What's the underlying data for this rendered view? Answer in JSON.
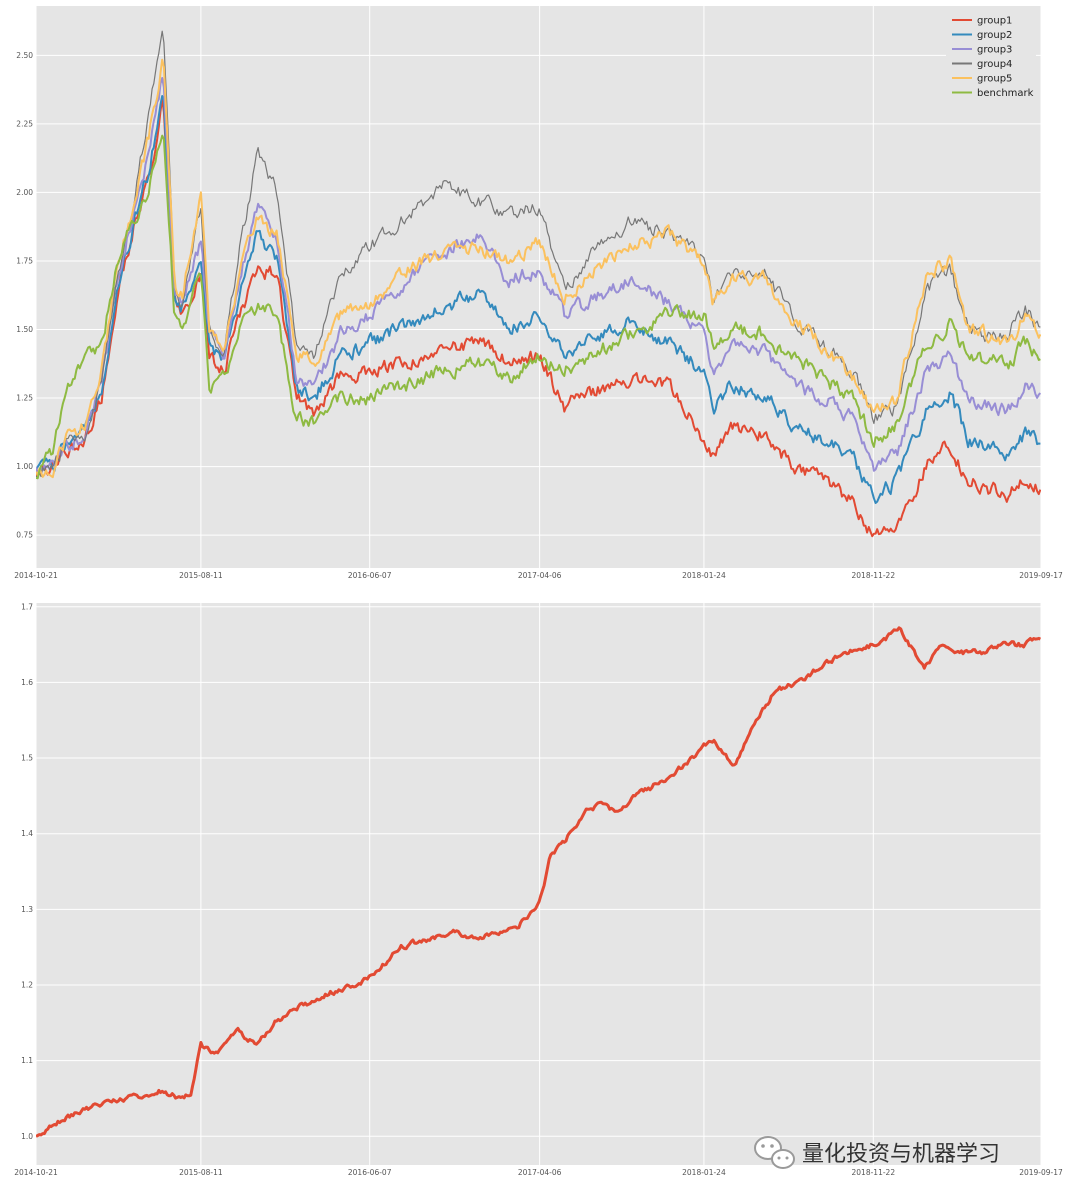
{
  "watermark": {
    "text": "量化投资与机器学习",
    "icon": "wechat-icon"
  },
  "colors": {
    "background": "#e5e5e5",
    "grid": "#ffffff",
    "group1": "#e24a33",
    "group2": "#348abd",
    "group3": "#988ed5",
    "group4": "#777777",
    "group5": "#fbc15e",
    "benchmark": "#8eba42"
  },
  "chart_data": [
    {
      "type": "line",
      "title": "",
      "xlabel": "",
      "ylabel": "",
      "grid": true,
      "legend": "top-right",
      "x_ticks": [
        "2014-10-21",
        "2015-08-11",
        "2016-06-07",
        "2017-04-06",
        "2018-01-24",
        "2018-11-22",
        "2019-09-17"
      ],
      "y_ticks": [
        "0.75",
        "1.00",
        "1.25",
        "1.50",
        "1.75",
        "2.00",
        "2.25",
        "2.50"
      ],
      "ylim": [
        0.63,
        2.68
      ],
      "series": [
        {
          "name": "group1",
          "x": [
            "2014-10-21",
            "2014-11-20",
            "2014-12-15",
            "2015-01-15",
            "2015-02-15",
            "2015-03-15",
            "2015-04-15",
            "2015-05-10",
            "2015-06-05",
            "2015-06-25",
            "2015-07-08",
            "2015-08-11",
            "2015-08-26",
            "2015-09-20",
            "2015-10-20",
            "2015-11-20",
            "2015-12-25",
            "2016-01-28",
            "2016-02-29",
            "2016-04-15",
            "2016-06-07",
            "2016-08-15",
            "2016-10-15",
            "2016-12-20",
            "2017-02-10",
            "2017-04-06",
            "2017-05-20",
            "2017-07-15",
            "2017-09-15",
            "2017-11-20",
            "2018-01-24",
            "2018-02-09",
            "2018-03-15",
            "2018-05-15",
            "2018-06-30",
            "2018-08-20",
            "2018-10-15",
            "2018-11-22",
            "2019-01-03",
            "2019-02-25",
            "2019-04-08",
            "2019-05-10",
            "2019-06-15",
            "2019-07-20",
            "2019-08-20",
            "2019-09-17"
          ],
          "values": [
            0.98,
            1.0,
            1.06,
            1.1,
            1.25,
            1.62,
            1.88,
            2.05,
            2.33,
            1.6,
            1.55,
            1.7,
            1.4,
            1.35,
            1.55,
            1.72,
            1.7,
            1.25,
            1.2,
            1.33,
            1.35,
            1.38,
            1.41,
            1.46,
            1.38,
            1.4,
            1.22,
            1.28,
            1.32,
            1.3,
            1.1,
            1.05,
            1.15,
            1.12,
            1.0,
            0.95,
            0.88,
            0.74,
            0.78,
            1.0,
            1.08,
            0.95,
            0.92,
            0.9,
            0.95,
            0.91
          ]
        },
        {
          "name": "group2",
          "x": [
            "2014-10-21",
            "2014-11-20",
            "2014-12-15",
            "2015-01-15",
            "2015-02-15",
            "2015-03-15",
            "2015-04-15",
            "2015-05-10",
            "2015-06-05",
            "2015-06-25",
            "2015-07-08",
            "2015-08-11",
            "2015-08-26",
            "2015-09-20",
            "2015-10-20",
            "2015-11-20",
            "2015-12-25",
            "2016-01-28",
            "2016-02-29",
            "2016-04-15",
            "2016-06-07",
            "2016-08-15",
            "2016-10-15",
            "2016-12-20",
            "2017-02-10",
            "2017-04-06",
            "2017-05-20",
            "2017-07-15",
            "2017-09-15",
            "2017-11-20",
            "2018-01-24",
            "2018-02-09",
            "2018-03-15",
            "2018-05-15",
            "2018-06-30",
            "2018-08-20",
            "2018-10-15",
            "2018-11-22",
            "2019-01-03",
            "2019-02-25",
            "2019-04-08",
            "2019-05-10",
            "2019-06-15",
            "2019-07-20",
            "2019-08-20",
            "2019-09-17"
          ],
          "values": [
            0.98,
            1.0,
            1.08,
            1.12,
            1.28,
            1.65,
            1.9,
            2.08,
            2.35,
            1.62,
            1.58,
            1.78,
            1.45,
            1.38,
            1.62,
            1.85,
            1.75,
            1.28,
            1.25,
            1.4,
            1.45,
            1.52,
            1.58,
            1.63,
            1.5,
            1.57,
            1.4,
            1.48,
            1.53,
            1.45,
            1.35,
            1.2,
            1.3,
            1.25,
            1.15,
            1.1,
            1.05,
            0.88,
            0.95,
            1.2,
            1.27,
            1.1,
            1.08,
            1.05,
            1.12,
            1.09
          ]
        },
        {
          "name": "group3",
          "x": [
            "2014-10-21",
            "2014-11-20",
            "2014-12-15",
            "2015-01-15",
            "2015-02-15",
            "2015-03-15",
            "2015-04-15",
            "2015-05-10",
            "2015-06-05",
            "2015-06-25",
            "2015-07-08",
            "2015-08-11",
            "2015-08-26",
            "2015-09-20",
            "2015-10-20",
            "2015-11-20",
            "2015-12-25",
            "2016-01-28",
            "2016-02-29",
            "2016-04-15",
            "2016-06-07",
            "2016-08-15",
            "2016-10-15",
            "2016-12-20",
            "2017-02-10",
            "2017-04-06",
            "2017-05-20",
            "2017-07-15",
            "2017-09-15",
            "2017-11-20",
            "2018-01-24",
            "2018-02-09",
            "2018-03-15",
            "2018-05-15",
            "2018-06-30",
            "2018-08-20",
            "2018-10-15",
            "2018-11-22",
            "2019-01-03",
            "2019-02-25",
            "2019-04-08",
            "2019-05-10",
            "2019-06-15",
            "2019-07-20",
            "2019-08-20",
            "2019-09-17"
          ],
          "values": [
            0.98,
            1.0,
            1.08,
            1.12,
            1.3,
            1.68,
            1.95,
            2.15,
            2.45,
            1.65,
            1.6,
            1.82,
            1.48,
            1.4,
            1.68,
            1.95,
            1.85,
            1.32,
            1.28,
            1.48,
            1.55,
            1.68,
            1.78,
            1.85,
            1.68,
            1.72,
            1.55,
            1.62,
            1.68,
            1.6,
            1.5,
            1.35,
            1.45,
            1.42,
            1.3,
            1.25,
            1.18,
            1.0,
            1.05,
            1.35,
            1.4,
            1.25,
            1.22,
            1.2,
            1.3,
            1.25
          ]
        },
        {
          "name": "group4",
          "x": [
            "2014-10-21",
            "2014-11-20",
            "2014-12-15",
            "2015-01-15",
            "2015-02-15",
            "2015-03-15",
            "2015-04-15",
            "2015-05-10",
            "2015-06-05",
            "2015-06-25",
            "2015-07-08",
            "2015-08-11",
            "2015-08-26",
            "2015-09-20",
            "2015-10-20",
            "2015-11-20",
            "2015-12-25",
            "2016-01-28",
            "2016-02-29",
            "2016-04-15",
            "2016-06-07",
            "2016-08-15",
            "2016-10-15",
            "2016-12-20",
            "2017-02-10",
            "2017-04-06",
            "2017-05-20",
            "2017-07-15",
            "2017-09-15",
            "2017-11-20",
            "2018-01-24",
            "2018-02-09",
            "2018-03-15",
            "2018-05-15",
            "2018-06-30",
            "2018-08-20",
            "2018-10-15",
            "2018-11-22",
            "2019-01-03",
            "2019-02-25",
            "2019-04-08",
            "2019-05-10",
            "2019-06-15",
            "2019-07-20",
            "2019-08-20",
            "2019-09-17"
          ],
          "values": [
            0.98,
            1.0,
            1.08,
            1.12,
            1.3,
            1.7,
            2.0,
            2.3,
            2.62,
            1.65,
            1.6,
            1.95,
            1.5,
            1.42,
            1.8,
            2.14,
            2.0,
            1.45,
            1.4,
            1.7,
            1.8,
            1.92,
            2.02,
            1.97,
            1.92,
            1.95,
            1.65,
            1.8,
            1.9,
            1.85,
            1.78,
            1.6,
            1.72,
            1.7,
            1.55,
            1.45,
            1.35,
            1.18,
            1.22,
            1.65,
            1.72,
            1.5,
            1.48,
            1.48,
            1.58,
            1.48
          ]
        },
        {
          "name": "group5",
          "x": [
            "2014-10-21",
            "2014-11-20",
            "2014-12-15",
            "2015-01-15",
            "2015-02-15",
            "2015-03-15",
            "2015-04-15",
            "2015-05-10",
            "2015-06-05",
            "2015-06-25",
            "2015-07-08",
            "2015-08-11",
            "2015-08-26",
            "2015-09-20",
            "2015-10-20",
            "2015-11-20",
            "2015-12-25",
            "2016-01-28",
            "2016-02-29",
            "2016-04-15",
            "2016-06-07",
            "2016-08-15",
            "2016-10-15",
            "2016-12-20",
            "2017-02-10",
            "2017-04-06",
            "2017-05-20",
            "2017-07-15",
            "2017-09-15",
            "2017-11-20",
            "2018-01-24",
            "2018-02-09",
            "2018-03-15",
            "2018-05-15",
            "2018-06-30",
            "2018-08-20",
            "2018-10-15",
            "2018-11-22",
            "2019-01-03",
            "2019-02-25",
            "2019-04-08",
            "2019-05-10",
            "2019-06-15",
            "2019-07-20",
            "2019-08-20",
            "2019-09-17"
          ],
          "values": [
            0.98,
            1.0,
            1.1,
            1.15,
            1.35,
            1.72,
            1.98,
            2.2,
            2.5,
            1.68,
            1.62,
            2.0,
            1.5,
            1.42,
            1.72,
            1.9,
            1.85,
            1.42,
            1.38,
            1.55,
            1.6,
            1.72,
            1.78,
            1.8,
            1.75,
            1.82,
            1.62,
            1.72,
            1.8,
            1.85,
            1.75,
            1.6,
            1.7,
            1.68,
            1.55,
            1.45,
            1.32,
            1.2,
            1.25,
            1.7,
            1.75,
            1.5,
            1.48,
            1.45,
            1.55,
            1.48
          ]
        },
        {
          "name": "benchmark",
          "x": [
            "2014-10-21",
            "2014-11-20",
            "2014-12-15",
            "2015-01-15",
            "2015-02-15",
            "2015-03-15",
            "2015-04-15",
            "2015-05-10",
            "2015-06-05",
            "2015-06-25",
            "2015-07-08",
            "2015-08-11",
            "2015-08-26",
            "2015-09-20",
            "2015-10-20",
            "2015-11-20",
            "2015-12-25",
            "2016-01-28",
            "2016-02-29",
            "2016-04-15",
            "2016-06-07",
            "2016-08-15",
            "2016-10-15",
            "2016-12-20",
            "2017-02-10",
            "2017-04-06",
            "2017-05-20",
            "2017-07-15",
            "2017-09-15",
            "2017-11-20",
            "2018-01-24",
            "2018-02-09",
            "2018-03-15",
            "2018-05-15",
            "2018-06-30",
            "2018-08-20",
            "2018-10-15",
            "2018-11-22",
            "2019-01-03",
            "2019-02-25",
            "2019-04-08",
            "2019-05-10",
            "2019-06-15",
            "2019-07-20",
            "2019-08-20",
            "2019-09-17"
          ],
          "values": [
            0.98,
            1.05,
            1.3,
            1.38,
            1.45,
            1.75,
            1.9,
            2.0,
            2.25,
            1.55,
            1.5,
            1.7,
            1.3,
            1.32,
            1.5,
            1.58,
            1.55,
            1.18,
            1.15,
            1.25,
            1.25,
            1.3,
            1.35,
            1.38,
            1.32,
            1.4,
            1.35,
            1.42,
            1.48,
            1.55,
            1.55,
            1.45,
            1.5,
            1.48,
            1.4,
            1.33,
            1.25,
            1.1,
            1.15,
            1.45,
            1.52,
            1.4,
            1.38,
            1.38,
            1.45,
            1.4
          ]
        }
      ]
    },
    {
      "type": "line",
      "title": "",
      "xlabel": "",
      "ylabel": "",
      "grid": true,
      "legend": "none",
      "x_ticks": [
        "2014-10-21",
        "2015-08-11",
        "2016-06-07",
        "2017-04-06",
        "2018-01-24",
        "2018-11-22",
        "2019-09-17"
      ],
      "y_ticks": [
        "1.0",
        "1.1",
        "1.2",
        "1.3",
        "1.4",
        "1.5",
        "1.6",
        "1.7"
      ],
      "ylim": [
        0.962,
        1.705
      ],
      "series": [
        {
          "name": "",
          "x": [
            "2014-10-21",
            "2014-12-01",
            "2015-02-01",
            "2015-04-01",
            "2015-06-01",
            "2015-07-10",
            "2015-07-25",
            "2015-08-11",
            "2015-09-10",
            "2015-10-15",
            "2015-11-20",
            "2015-12-20",
            "2016-02-01",
            "2016-04-01",
            "2016-06-07",
            "2016-08-01",
            "2016-09-15",
            "2016-11-01",
            "2016-12-15",
            "2017-01-20",
            "2017-03-01",
            "2017-04-06",
            "2017-04-25",
            "2017-05-20",
            "2017-06-30",
            "2017-07-25",
            "2017-08-20",
            "2017-09-25",
            "2017-10-20",
            "2017-11-30",
            "2018-01-05",
            "2018-01-24",
            "2018-02-15",
            "2018-03-20",
            "2018-04-20",
            "2018-06-01",
            "2018-07-10",
            "2018-08-20",
            "2018-10-01",
            "2018-11-22",
            "2019-01-10",
            "2019-02-20",
            "2019-03-25",
            "2019-04-20",
            "2019-06-01",
            "2019-07-15",
            "2019-08-20",
            "2019-09-17"
          ],
          "values": [
            1.0,
            1.02,
            1.04,
            1.05,
            1.06,
            1.05,
            1.06,
            1.12,
            1.11,
            1.14,
            1.12,
            1.15,
            1.17,
            1.19,
            1.21,
            1.25,
            1.26,
            1.27,
            1.26,
            1.27,
            1.28,
            1.31,
            1.37,
            1.39,
            1.43,
            1.44,
            1.43,
            1.45,
            1.46,
            1.48,
            1.5,
            1.52,
            1.52,
            1.49,
            1.54,
            1.59,
            1.6,
            1.62,
            1.64,
            1.65,
            1.67,
            1.62,
            1.65,
            1.64,
            1.64,
            1.65,
            1.65,
            1.66
          ]
        }
      ]
    }
  ]
}
